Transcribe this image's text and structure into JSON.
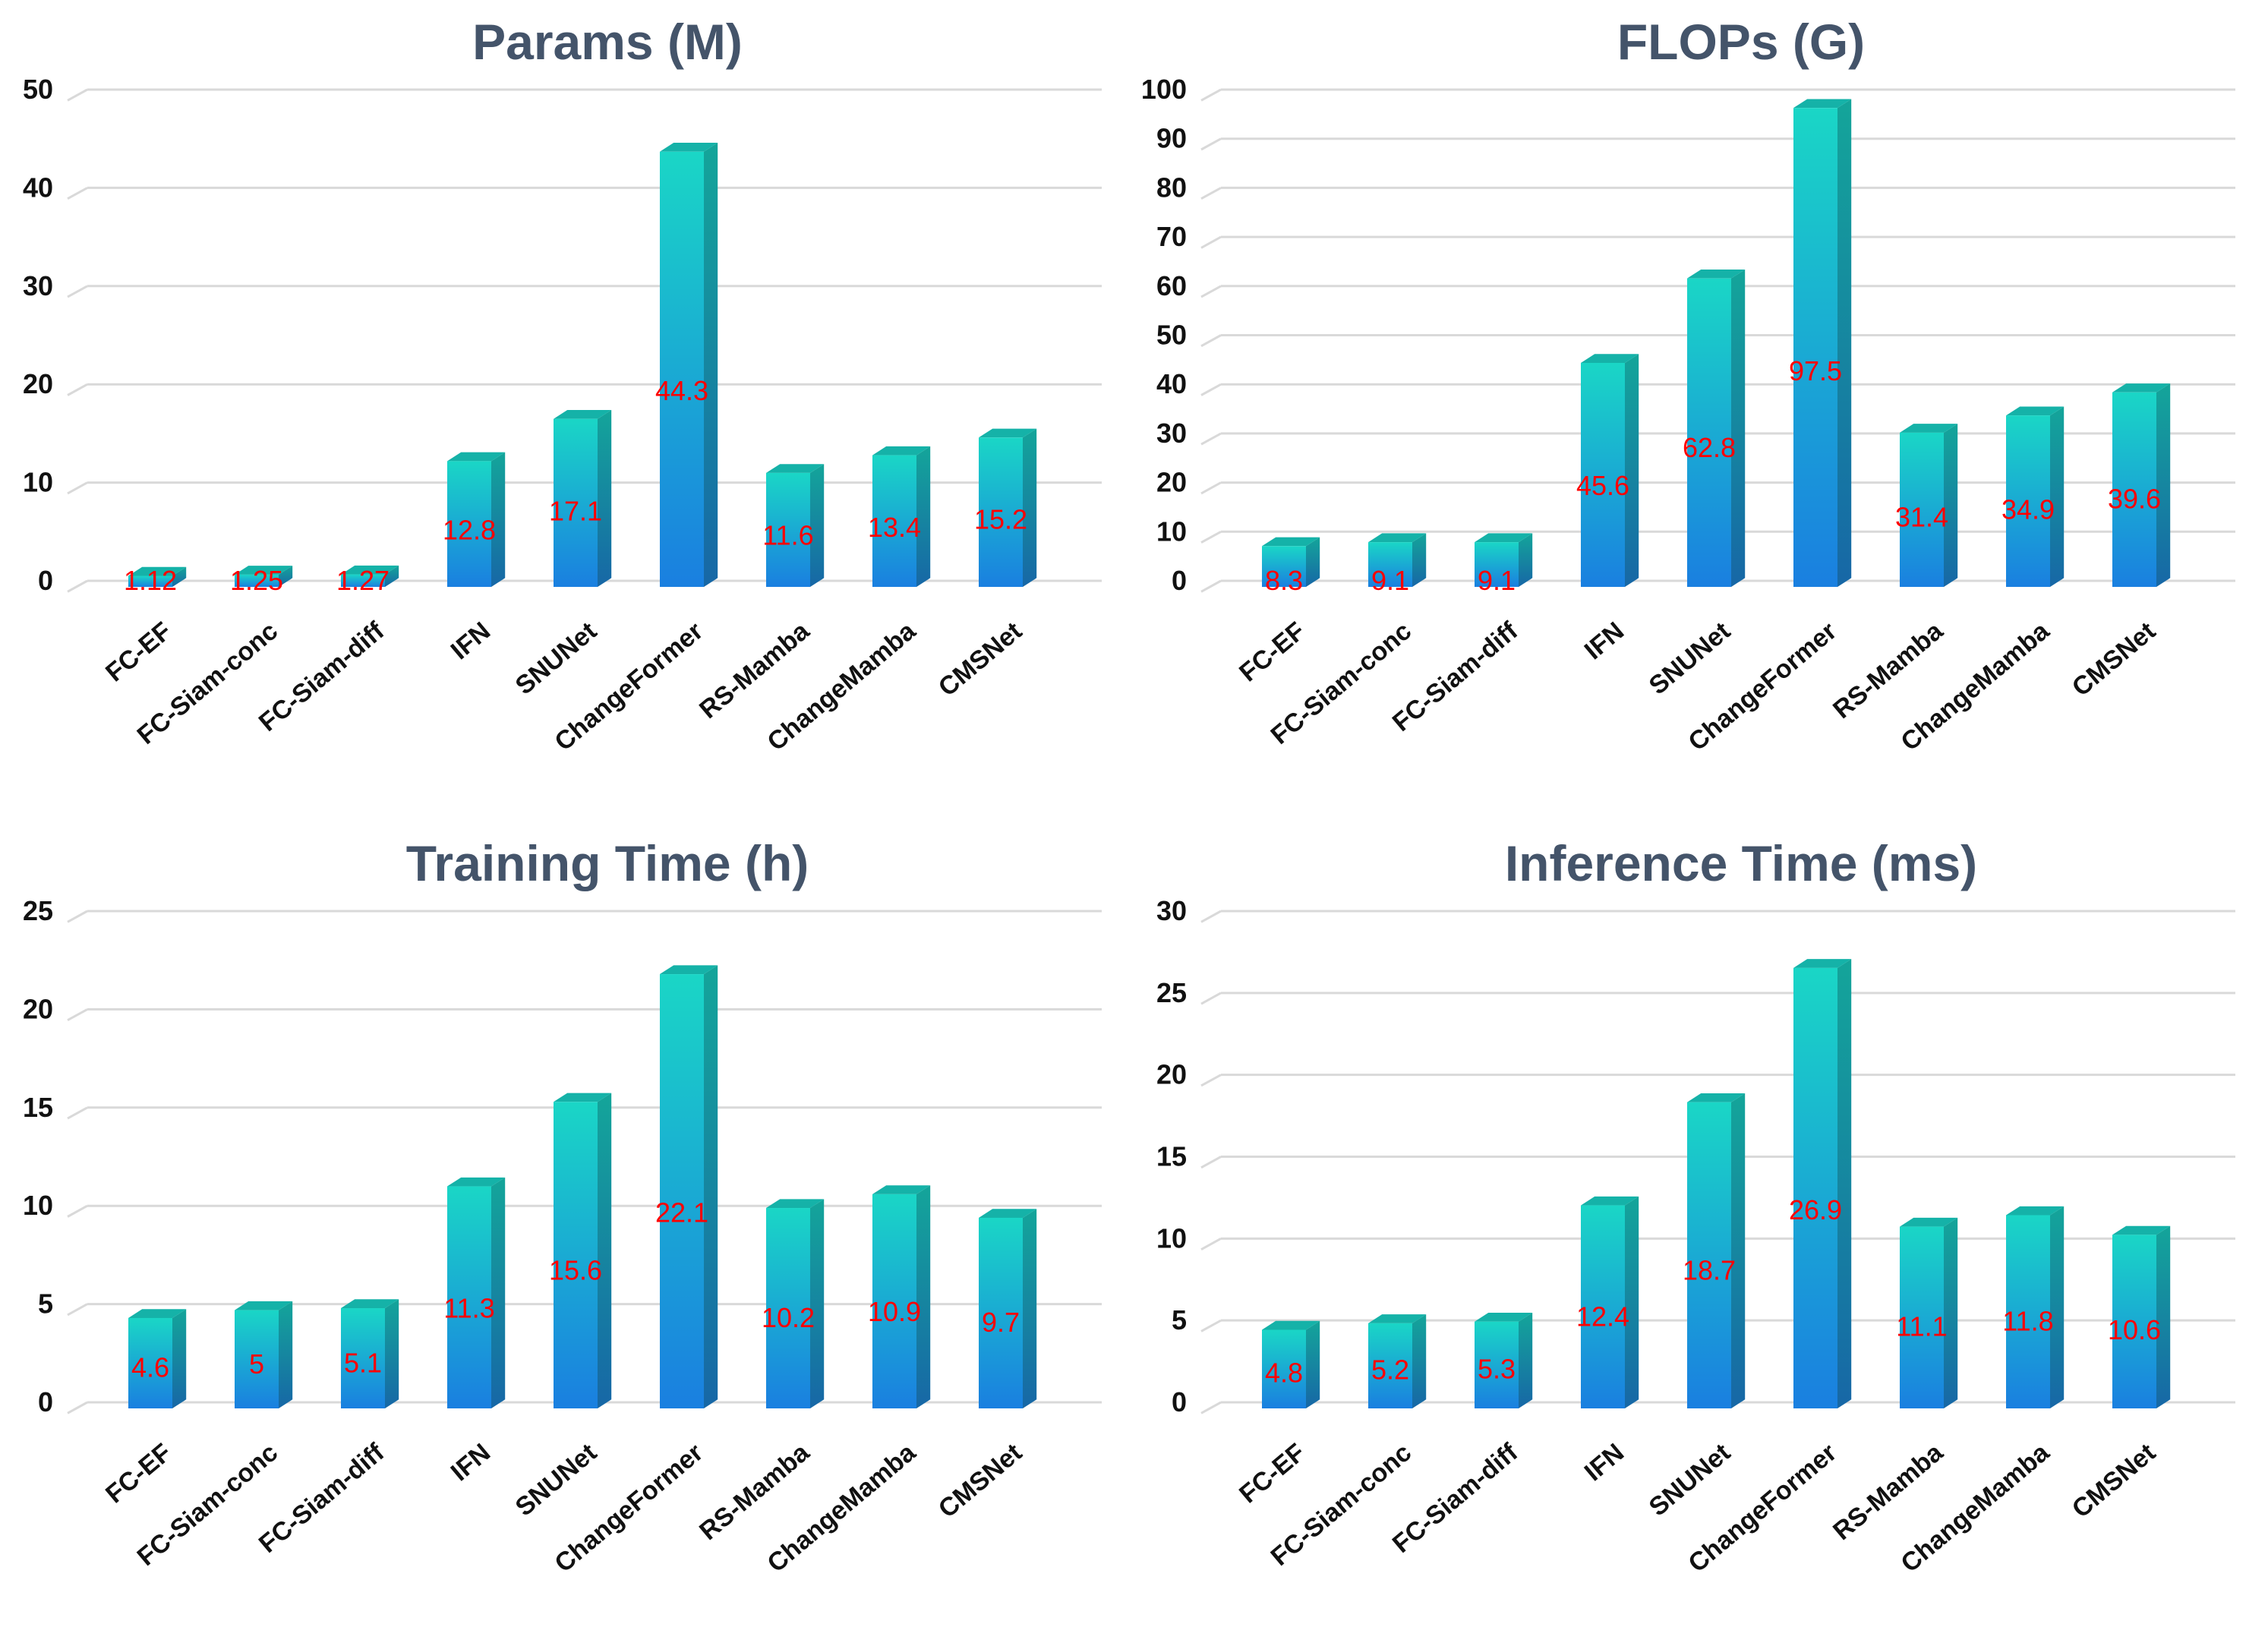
{
  "chart_data": [
    {
      "type": "bar",
      "title": "Params (M)",
      "categories": [
        "FC-EF",
        "FC-Siam-conc",
        "FC-Siam-diff",
        "IFN",
        "SNUNet",
        "ChangeFormer",
        "RS-Mamba",
        "ChangeMamba",
        "CMSNet"
      ],
      "values": [
        1.12,
        1.25,
        1.27,
        12.8,
        17.1,
        44.3,
        11.6,
        13.4,
        15.2
      ],
      "labels": [
        "1.12",
        "1.25",
        "1.27",
        "12.8",
        "17.1",
        "44.3",
        "11.6",
        "13.4",
        "15.2"
      ],
      "ylim": [
        0,
        50
      ],
      "yticks": [
        0,
        10,
        20,
        30,
        40,
        50
      ],
      "xlabel": "",
      "ylabel": "",
      "grid": true,
      "legend": "none"
    },
    {
      "type": "bar",
      "title": "FLOPs (G)",
      "categories": [
        "FC-EF",
        "FC-Siam-conc",
        "FC-Siam-diff",
        "IFN",
        "SNUNet",
        "ChangeFormer",
        "RS-Mamba",
        "ChangeMamba",
        "CMSNet"
      ],
      "values": [
        8.3,
        9.1,
        9.1,
        45.6,
        62.8,
        97.5,
        31.4,
        34.9,
        39.6
      ],
      "labels": [
        "8.3",
        "9.1",
        "9.1",
        "45.6",
        "62.8",
        "97.5",
        "31.4",
        "34.9",
        "39.6"
      ],
      "ylim": [
        0,
        100
      ],
      "yticks": [
        0,
        10,
        20,
        30,
        40,
        50,
        60,
        70,
        80,
        90,
        100
      ],
      "xlabel": "",
      "ylabel": "",
      "grid": true,
      "legend": "none"
    },
    {
      "type": "bar",
      "title": "Training Time (h)",
      "categories": [
        "FC-EF",
        "FC-Siam-conc",
        "FC-Siam-diff",
        "IFN",
        "SNUNet",
        "ChangeFormer",
        "RS-Mamba",
        "ChangeMamba",
        "CMSNet"
      ],
      "values": [
        4.6,
        5,
        5.1,
        11.3,
        15.6,
        22.1,
        10.2,
        10.9,
        9.7
      ],
      "labels": [
        "4.6",
        "5",
        "5.1",
        "11.3",
        "15.6",
        "22.1",
        "10.2",
        "10.9",
        "9.7"
      ],
      "ylim": [
        0,
        25
      ],
      "yticks": [
        0,
        5,
        10,
        15,
        20,
        25
      ],
      "xlabel": "",
      "ylabel": "",
      "grid": true,
      "legend": "none"
    },
    {
      "type": "bar",
      "title": "Inference Time (ms)",
      "categories": [
        "FC-EF",
        "FC-Siam-conc",
        "FC-Siam-diff",
        "IFN",
        "SNUNet",
        "ChangeFormer",
        "RS-Mamba",
        "ChangeMamba",
        "CMSNet"
      ],
      "values": [
        4.8,
        5.2,
        5.3,
        12.4,
        18.7,
        26.9,
        11.1,
        11.8,
        10.6
      ],
      "labels": [
        "4.8",
        "5.2",
        "5.3",
        "12.4",
        "18.7",
        "26.9",
        "11.1",
        "11.8",
        "10.6"
      ],
      "ylim": [
        0,
        30
      ],
      "yticks": [
        0,
        5,
        10,
        15,
        20,
        25,
        30
      ],
      "xlabel": "",
      "ylabel": "",
      "grid": true,
      "legend": "none"
    }
  ],
  "colors": {
    "title": "#44546a",
    "label": "#ff0000",
    "bar_front_top": "#1ad6c6",
    "bar_front_bottom": "#1a7fe0",
    "bar_side": "#1767a6",
    "bar_top": "#15b2a8",
    "grid": "#d9d9d9",
    "axis_text": "#111111"
  }
}
